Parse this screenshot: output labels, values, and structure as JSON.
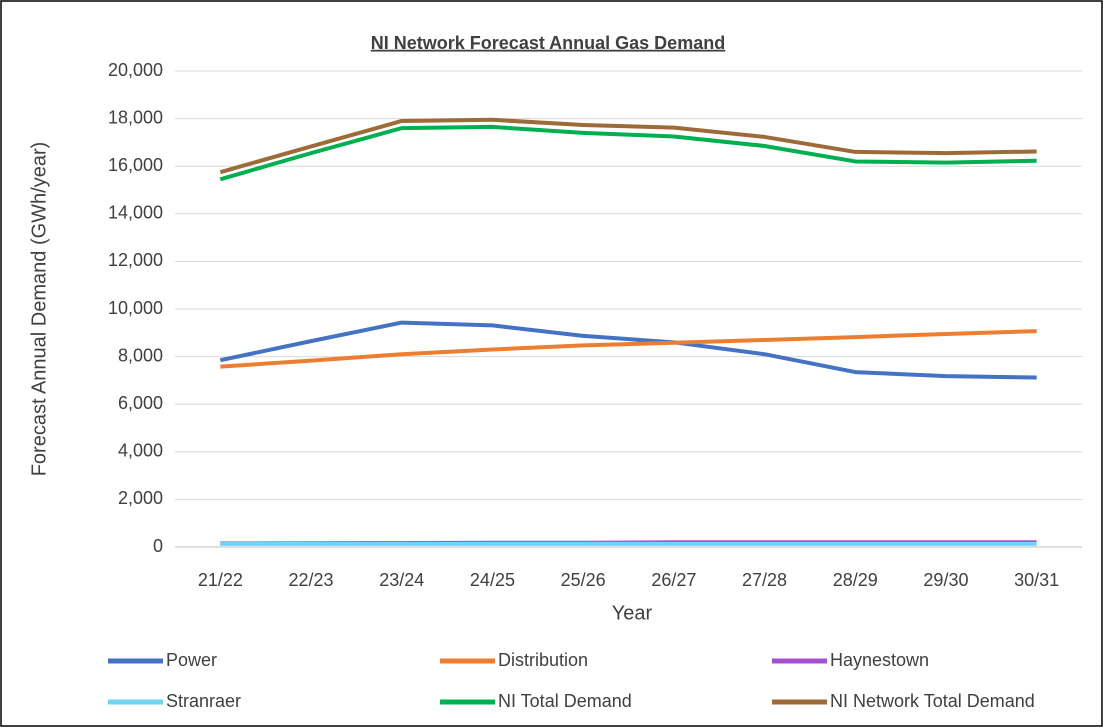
{
  "chart_data": {
    "type": "line",
    "title": "NI Network Forecast Annual Gas Demand",
    "x_label": "Year",
    "y_label": "Forecast Annual Demand (GWh/year)",
    "categories": [
      "21/22",
      "22/23",
      "23/24",
      "24/25",
      "25/26",
      "26/27",
      "27/28",
      "28/29",
      "29/30",
      "30/31"
    ],
    "series": [
      {
        "name": "Power",
        "color": "#4472c4",
        "values": [
          7850,
          8650,
          9430,
          9310,
          8870,
          8600,
          8100,
          7350,
          7180,
          7120
        ]
      },
      {
        "name": "Distribution",
        "color": "#ed7d31",
        "values": [
          7580,
          7830,
          8100,
          8300,
          8470,
          8580,
          8700,
          8820,
          8950,
          9070
        ]
      },
      {
        "name": "Haynestown",
        "color": "#a64fd1",
        "values": [
          150,
          160,
          170,
          180,
          180,
          200,
          200,
          200,
          200,
          200
        ]
      },
      {
        "name": "Stranraer",
        "color": "#71d3f5",
        "values": [
          130,
          130,
          130,
          130,
          130,
          130,
          130,
          130,
          130,
          130
        ]
      },
      {
        "name": "NI Total Demand",
        "color": "#00b050",
        "values": [
          15450,
          16550,
          17600,
          17650,
          17400,
          17250,
          16850,
          16200,
          16150,
          16230
        ]
      },
      {
        "name": "NI Network Total Demand",
        "color": "#9e6a38",
        "values": [
          15750,
          16830,
          17900,
          17950,
          17730,
          17620,
          17230,
          16600,
          16550,
          16620
        ]
      }
    ],
    "ylim": [
      0,
      20000
    ],
    "yticks": [
      0,
      {
        "value": 2000,
        "label": "2,000"
      },
      {
        "value": 4000,
        "label": "4,000"
      },
      {
        "value": 6000,
        "label": "6,000"
      },
      {
        "value": 8000,
        "label": "8,000"
      },
      {
        "value": 10000,
        "label": "10,000"
      },
      {
        "value": 12000,
        "label": "12,000"
      },
      {
        "value": 14000,
        "label": "14,000"
      },
      {
        "value": 16000,
        "label": "16,000"
      },
      {
        "value": 18000,
        "label": "18,000"
      },
      {
        "value": 20000,
        "label": "20,000"
      }
    ],
    "grid": true,
    "legend": "bottom"
  }
}
